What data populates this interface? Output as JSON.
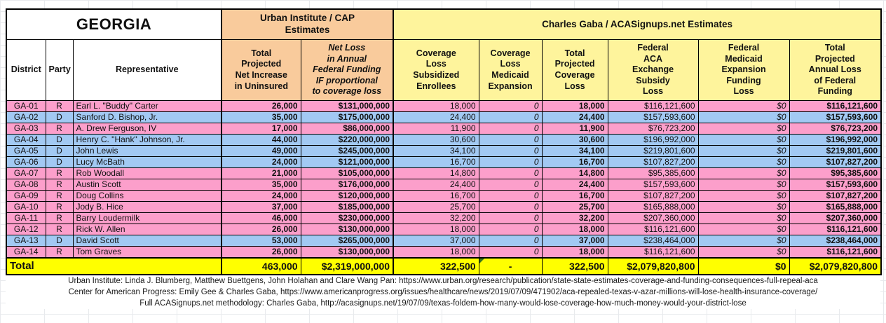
{
  "sheet_title": "GEORGIA",
  "sections": {
    "urban_label": "Urban Institute / CAP\nEstimates",
    "gaba_label": "Charles Gaba / ACASignups.net Estimates"
  },
  "columns": [
    {
      "key": "district",
      "label": "District"
    },
    {
      "key": "party",
      "label": "Party"
    },
    {
      "key": "representative",
      "label": "Representative"
    },
    {
      "key": "net_increase",
      "label": "Total\nProjected\nNet Increase\nin Uninsured"
    },
    {
      "key": "net_loss_urban",
      "label": "Net Loss\nin Annual\nFederal Funding\nIF proportional\nto coverage loss"
    },
    {
      "key": "cov_loss_subsidized",
      "label": "Coverage\nLoss\nSubsidized\nEnrollees"
    },
    {
      "key": "cov_loss_medicaid",
      "label": "Coverage\nLoss\nMedicaid\nExpansion"
    },
    {
      "key": "total_cov_loss",
      "label": "Total\nProjected\nCoverage\nLoss"
    },
    {
      "key": "aca_subsidy_loss",
      "label": "Federal\nACA\nExchange\nSubsidy\nLoss"
    },
    {
      "key": "medicaid_funding_loss",
      "label": "Federal\nMedicaid\nExpansion\nFunding\nLoss"
    },
    {
      "key": "total_funding_loss",
      "label": "Total\nProjected\nAnnual Loss\nof Federal\nFunding"
    }
  ],
  "rows": [
    {
      "district": "GA-01",
      "party": "R",
      "representative": "Earl L. \"Buddy\" Carter",
      "net_increase": "26,000",
      "net_loss_urban": "$131,000,000",
      "cov_loss_subsidized": "18,000",
      "cov_loss_medicaid": "0",
      "total_cov_loss": "18,000",
      "aca_subsidy_loss": "$116,121,600",
      "medicaid_funding_loss": "$0",
      "total_funding_loss": "$116,121,600"
    },
    {
      "district": "GA-02",
      "party": "D",
      "representative": "Sanford D. Bishop, Jr.",
      "net_increase": "35,000",
      "net_loss_urban": "$175,000,000",
      "cov_loss_subsidized": "24,400",
      "cov_loss_medicaid": "0",
      "total_cov_loss": "24,400",
      "aca_subsidy_loss": "$157,593,600",
      "medicaid_funding_loss": "$0",
      "total_funding_loss": "$157,593,600"
    },
    {
      "district": "GA-03",
      "party": "R",
      "representative": "A. Drew Ferguson, IV",
      "net_increase": "17,000",
      "net_loss_urban": "$86,000,000",
      "cov_loss_subsidized": "11,900",
      "cov_loss_medicaid": "0",
      "total_cov_loss": "11,900",
      "aca_subsidy_loss": "$76,723,200",
      "medicaid_funding_loss": "$0",
      "total_funding_loss": "$76,723,200"
    },
    {
      "district": "GA-04",
      "party": "D",
      "representative": "Henry C. \"Hank\" Johnson, Jr.",
      "net_increase": "44,000",
      "net_loss_urban": "$220,000,000",
      "cov_loss_subsidized": "30,600",
      "cov_loss_medicaid": "0",
      "total_cov_loss": "30,600",
      "aca_subsidy_loss": "$196,992,000",
      "medicaid_funding_loss": "$0",
      "total_funding_loss": "$196,992,000"
    },
    {
      "district": "GA-05",
      "party": "D",
      "representative": "John Lewis",
      "net_increase": "49,000",
      "net_loss_urban": "$245,000,000",
      "cov_loss_subsidized": "34,100",
      "cov_loss_medicaid": "0",
      "total_cov_loss": "34,100",
      "aca_subsidy_loss": "$219,801,600",
      "medicaid_funding_loss": "$0",
      "total_funding_loss": "$219,801,600"
    },
    {
      "district": "GA-06",
      "party": "D",
      "representative": "Lucy McBath",
      "net_increase": "24,000",
      "net_loss_urban": "$121,000,000",
      "cov_loss_subsidized": "16,700",
      "cov_loss_medicaid": "0",
      "total_cov_loss": "16,700",
      "aca_subsidy_loss": "$107,827,200",
      "medicaid_funding_loss": "$0",
      "total_funding_loss": "$107,827,200"
    },
    {
      "district": "GA-07",
      "party": "R",
      "representative": "Rob Woodall",
      "net_increase": "21,000",
      "net_loss_urban": "$105,000,000",
      "cov_loss_subsidized": "14,800",
      "cov_loss_medicaid": "0",
      "total_cov_loss": "14,800",
      "aca_subsidy_loss": "$95,385,600",
      "medicaid_funding_loss": "$0",
      "total_funding_loss": "$95,385,600"
    },
    {
      "district": "GA-08",
      "party": "R",
      "representative": "Austin Scott",
      "net_increase": "35,000",
      "net_loss_urban": "$176,000,000",
      "cov_loss_subsidized": "24,400",
      "cov_loss_medicaid": "0",
      "total_cov_loss": "24,400",
      "aca_subsidy_loss": "$157,593,600",
      "medicaid_funding_loss": "$0",
      "total_funding_loss": "$157,593,600"
    },
    {
      "district": "GA-09",
      "party": "R",
      "representative": "Doug Collins",
      "net_increase": "24,000",
      "net_loss_urban": "$120,000,000",
      "cov_loss_subsidized": "16,700",
      "cov_loss_medicaid": "0",
      "total_cov_loss": "16,700",
      "aca_subsidy_loss": "$107,827,200",
      "medicaid_funding_loss": "$0",
      "total_funding_loss": "$107,827,200"
    },
    {
      "district": "GA-10",
      "party": "R",
      "representative": "Jody B. Hice",
      "net_increase": "37,000",
      "net_loss_urban": "$185,000,000",
      "cov_loss_subsidized": "25,700",
      "cov_loss_medicaid": "0",
      "total_cov_loss": "25,700",
      "aca_subsidy_loss": "$165,888,000",
      "medicaid_funding_loss": "$0",
      "total_funding_loss": "$165,888,000"
    },
    {
      "district": "GA-11",
      "party": "R",
      "representative": "Barry Loudermilk",
      "net_increase": "46,000",
      "net_loss_urban": "$230,000,000",
      "cov_loss_subsidized": "32,200",
      "cov_loss_medicaid": "0",
      "total_cov_loss": "32,200",
      "aca_subsidy_loss": "$207,360,000",
      "medicaid_funding_loss": "$0",
      "total_funding_loss": "$207,360,000"
    },
    {
      "district": "GA-12",
      "party": "R",
      "representative": "Rick W. Allen",
      "net_increase": "26,000",
      "net_loss_urban": "$130,000,000",
      "cov_loss_subsidized": "18,000",
      "cov_loss_medicaid": "0",
      "total_cov_loss": "18,000",
      "aca_subsidy_loss": "$116,121,600",
      "medicaid_funding_loss": "$0",
      "total_funding_loss": "$116,121,600"
    },
    {
      "district": "GA-13",
      "party": "D",
      "representative": "David Scott",
      "net_increase": "53,000",
      "net_loss_urban": "$265,000,000",
      "cov_loss_subsidized": "37,000",
      "cov_loss_medicaid": "0",
      "total_cov_loss": "37,000",
      "aca_subsidy_loss": "$238,464,000",
      "medicaid_funding_loss": "$0",
      "total_funding_loss": "$238,464,000"
    },
    {
      "district": "GA-14",
      "party": "R",
      "representative": "Tom Graves",
      "net_increase": "26,000",
      "net_loss_urban": "$130,000,000",
      "cov_loss_subsidized": "18,000",
      "cov_loss_medicaid": "0",
      "total_cov_loss": "18,000",
      "aca_subsidy_loss": "$116,121,600",
      "medicaid_funding_loss": "$0",
      "total_funding_loss": "$116,121,600"
    }
  ],
  "total": {
    "label": "Total",
    "net_increase": "463,000",
    "net_loss_urban": "$2,319,000,000",
    "cov_loss_subsidized": "322,500",
    "cov_loss_medicaid": "-",
    "total_cov_loss": "322,500",
    "aca_subsidy_loss": "$2,079,820,800",
    "medicaid_funding_loss": "$0",
    "total_funding_loss": "$2,079,820,800"
  },
  "footnotes": [
    "Urban Institute: Linda J. Blumberg, Matthew Buettgens, John Holahan and Clare Wang Pan: https://www.urban.org/research/publication/state-state-estimates-coverage-and-funding-consequences-full-repeal-aca",
    "Center for American Progress: Emily Gee & Charles Gaba, https://www.americanprogress.org/issues/healthcare/news/2019/07/09/471902/aca-repealed-texas-v-azar-millions-will-lose-health-insurance-coverage/",
    "Full ACASignups.net methodology: Charles Gaba, http://acasignups.net/19/07/09/texas-foldem-how-many-would-lose-coverage-how-much-money-would-your-district-lose"
  ],
  "colors": {
    "republican_row": "#fc9fcb",
    "democrat_row": "#a2c9f3",
    "urban_section_header": "#f9cb9c",
    "gaba_section_header": "#fef49c",
    "total_row": "#ffff00",
    "cell_marker_green": "#38761d"
  }
}
